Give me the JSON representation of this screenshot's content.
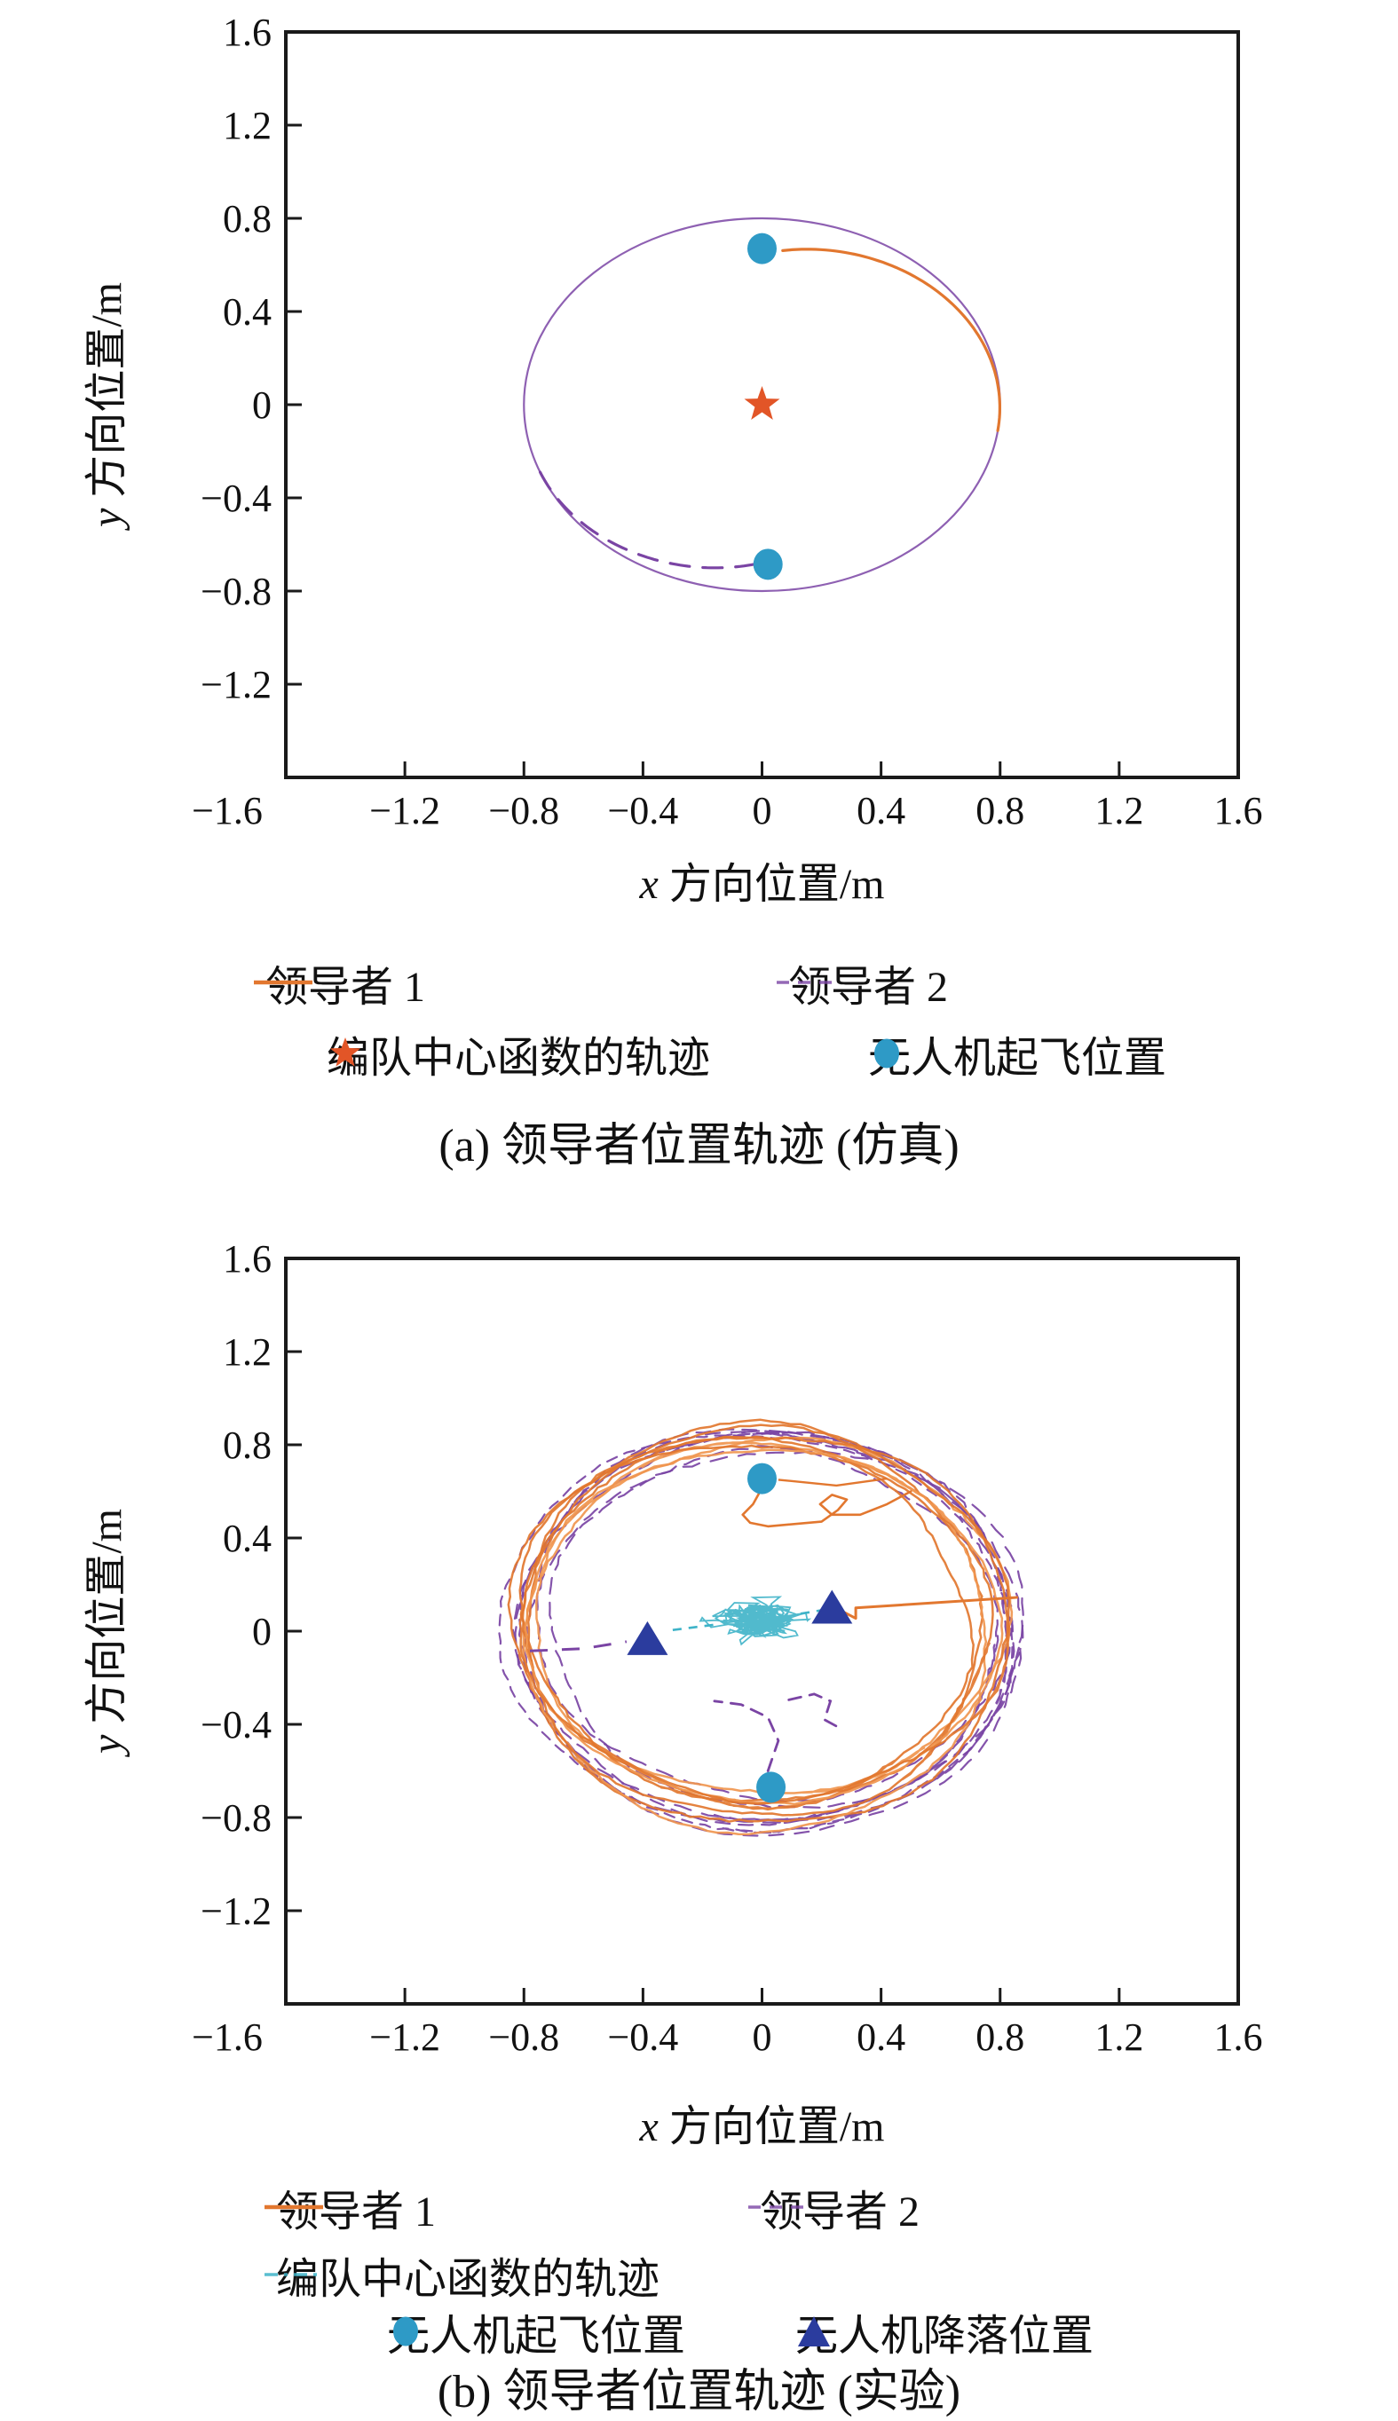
{
  "colors": {
    "axis": "#1a1a1a",
    "orange": "#E2772F",
    "orange_light": "#F0964F",
    "purple": "#7A44A4",
    "teal": "#3EB3C8",
    "blue": "#2E9AC6",
    "navy": "#2B3C9E",
    "star_orange": "#E25527"
  },
  "charts": [
    {
      "caption": "(a) 领导者位置轨迹 (仿真)",
      "legend_rows": [
        [
          {
            "marker": "line-solid",
            "color": "orange",
            "label": "领导者 1"
          },
          {
            "marker": "line-dashed",
            "color": "purple",
            "label": "领导者 2"
          }
        ],
        [
          {
            "marker": "star",
            "color": "star_orange",
            "label": "编队中心函数的轨迹"
          },
          {
            "marker": "circle",
            "color": "blue",
            "label": "无人机起飞位置"
          }
        ]
      ]
    },
    {
      "caption": "(b) 领导者位置轨迹 (实验)",
      "legend_rows": [
        [
          {
            "marker": "line-solid",
            "color": "orange",
            "label": "领导者 1"
          },
          {
            "marker": "line-dashed",
            "color": "purple",
            "label": "领导者 2"
          }
        ],
        [
          {
            "marker": "dashdot",
            "color": "teal",
            "label": "编队中心函数的轨迹"
          }
        ],
        [
          {
            "marker": "circle",
            "color": "blue",
            "label": "无人机起飞位置"
          },
          {
            "marker": "triangle",
            "color": "navy",
            "label": "无人机降落位置"
          }
        ]
      ]
    }
  ],
  "chart_data": [
    {
      "type": "line",
      "title": "(a) 领导者位置轨迹 (仿真)",
      "xlabel": "x 方向位置/m",
      "ylabel": "y 方向位置/m",
      "xlim": [
        -1.6,
        1.6
      ],
      "ylim": [
        -1.6,
        1.6
      ],
      "grid": false,
      "legend_position": "below",
      "x_axis": {
        "var": "x",
        "rest": " 方向位置/m",
        "ticks": [
          {
            "v": -1.6,
            "t": "−1.6"
          },
          {
            "v": -1.2,
            "t": "−1.2"
          },
          {
            "v": -0.8,
            "t": "−0.8"
          },
          {
            "v": -0.4,
            "t": "−0.4"
          },
          {
            "v": 0,
            "t": "0"
          },
          {
            "v": 0.4,
            "t": "0.4"
          },
          {
            "v": 0.8,
            "t": "0.8"
          },
          {
            "v": 1.2,
            "t": "1.2"
          },
          {
            "v": 1.6,
            "t": "1.6"
          }
        ]
      },
      "y_axis": {
        "var": "y",
        "rest": " 方向位置/m",
        "ticks": [
          {
            "v": 1.6,
            "t": "1.6"
          },
          {
            "v": 1.2,
            "t": "1.2"
          },
          {
            "v": 0.8,
            "t": "0.8"
          },
          {
            "v": 0.4,
            "t": "0.4"
          },
          {
            "v": 0,
            "t": "0"
          },
          {
            "v": -0.4,
            "t": "−0.4"
          },
          {
            "v": -0.8,
            "t": "−0.8"
          },
          {
            "v": -1.2,
            "t": "−1.2"
          }
        ]
      },
      "orbit": {
        "center": [
          0,
          0
        ],
        "radius": 0.8
      },
      "series": [
        {
          "name": "领导者 1",
          "style": "solid",
          "color": "orange",
          "arc": {
            "start_deg": 84,
            "end_deg": -8,
            "r_start": 0.665,
            "r_end": 0.8
          }
        },
        {
          "name": "领导者 2",
          "style": "dashed",
          "color": "purple",
          "arc": {
            "start_deg": 268,
            "end_deg": 199,
            "r_start": 0.685,
            "r_end": 0.8
          }
        },
        {
          "name": "编队中心函数的轨迹",
          "style": "star",
          "color": "star_orange",
          "points": [
            [
              0,
              0
            ]
          ]
        },
        {
          "name": "无人机起飞位置",
          "style": "circle",
          "color": "blue",
          "points": [
            [
              0,
              0.67
            ],
            [
              0.02,
              -0.685
            ]
          ]
        }
      ]
    },
    {
      "type": "line",
      "title": "(b) 领导者位置轨迹 (实验)",
      "xlabel": "x 方向位置/m",
      "ylabel": "y 方向位置/m",
      "xlim": [
        -1.6,
        1.6
      ],
      "ylim": [
        -1.6,
        1.6
      ],
      "grid": false,
      "legend_position": "below",
      "x_axis": {
        "var": "x",
        "rest": " 方向位置/m",
        "ticks": [
          {
            "v": -1.6,
            "t": "−1.6"
          },
          {
            "v": -1.2,
            "t": "−1.2"
          },
          {
            "v": -0.8,
            "t": "−0.8"
          },
          {
            "v": -0.4,
            "t": "−0.4"
          },
          {
            "v": 0,
            "t": "0"
          },
          {
            "v": 0.4,
            "t": "0.4"
          },
          {
            "v": 0.8,
            "t": "0.8"
          },
          {
            "v": 1.2,
            "t": "1.2"
          },
          {
            "v": 1.6,
            "t": "1.6"
          }
        ]
      },
      "y_axis": {
        "var": "y",
        "rest": " 方向位置/m",
        "ticks": [
          {
            "v": 1.6,
            "t": "1.6"
          },
          {
            "v": 1.2,
            "t": "1.2"
          },
          {
            "v": 0.8,
            "t": "0.8"
          },
          {
            "v": 0.4,
            "t": "0.4"
          },
          {
            "v": 0,
            "t": "0"
          },
          {
            "v": -0.4,
            "t": "−0.4"
          },
          {
            "v": -0.8,
            "t": "−0.8"
          },
          {
            "v": -1.2,
            "t": "−1.2"
          }
        ]
      },
      "ring": {
        "center": [
          0,
          0.02
        ],
        "radius": 0.8,
        "radius_jitter": 0.055,
        "loops_orange": 8,
        "loops_purple": 7,
        "seed": 7
      },
      "series": [
        {
          "name": "领导者 1",
          "style": "solid",
          "color": "orange"
        },
        {
          "name": "领导者 2",
          "style": "dashed",
          "color": "purple"
        },
        {
          "name": "编队中心函数的轨迹",
          "style": "dashdot",
          "color": "teal",
          "cluster": {
            "center": [
              -0.005,
              0.05
            ],
            "spread": [
              0.11,
              0.055
            ],
            "steps": 430,
            "seed": 3
          }
        },
        {
          "name": "无人机起飞位置",
          "style": "circle",
          "color": "blue",
          "points": [
            [
              0.0,
              0.655
            ],
            [
              0.03,
              -0.67
            ]
          ]
        },
        {
          "name": "无人机降落位置",
          "style": "triangle",
          "color": "navy",
          "points": [
            [
              -0.385,
              -0.03
            ],
            [
              0.235,
              0.105
            ]
          ]
        }
      ],
      "extras": {
        "orange_connector": [
          [
            0.27,
            0.085
          ],
          [
            0.315,
            0.055
          ],
          [
            0.315,
            0.1
          ],
          [
            0.86,
            0.145
          ]
        ],
        "orange_takeoff_squiggle": [
          [
            0.0,
            0.615
          ],
          [
            -0.03,
            0.545
          ],
          [
            -0.065,
            0.5
          ],
          [
            -0.04,
            0.465
          ],
          [
            0.02,
            0.45
          ],
          [
            0.2,
            0.47
          ],
          [
            0.255,
            0.52
          ],
          [
            0.285,
            0.565
          ],
          [
            0.235,
            0.585
          ],
          [
            0.195,
            0.545
          ],
          [
            0.235,
            0.5
          ],
          [
            0.33,
            0.5
          ],
          [
            0.42,
            0.545
          ],
          [
            0.5,
            0.6
          ]
        ],
        "orange_top_link": [
          [
            0.055,
            0.65
          ],
          [
            0.25,
            0.625
          ],
          [
            0.42,
            0.655
          ]
        ],
        "purple_left_dashes": [
          [
            -0.78,
            -0.085
          ],
          [
            -0.6,
            -0.075
          ],
          [
            -0.455,
            -0.045
          ]
        ],
        "purple_bottom_squiggle": [
          [
            0.02,
            -0.6
          ],
          [
            0.055,
            -0.47
          ],
          [
            0.02,
            -0.37
          ],
          [
            -0.07,
            -0.315
          ],
          [
            -0.16,
            -0.3
          ]
        ],
        "purple_bottom_hook": [
          [
            0.09,
            -0.295
          ],
          [
            0.175,
            -0.27
          ],
          [
            0.23,
            -0.3
          ],
          [
            0.21,
            -0.38
          ],
          [
            0.26,
            -0.415
          ]
        ],
        "teal_left_dashes": [
          [
            -0.3,
            0.005
          ],
          [
            -0.145,
            0.03
          ]
        ],
        "teal_right_dashes": [
          [
            0.13,
            0.075
          ],
          [
            0.2,
            0.09
          ]
        ]
      }
    }
  ]
}
